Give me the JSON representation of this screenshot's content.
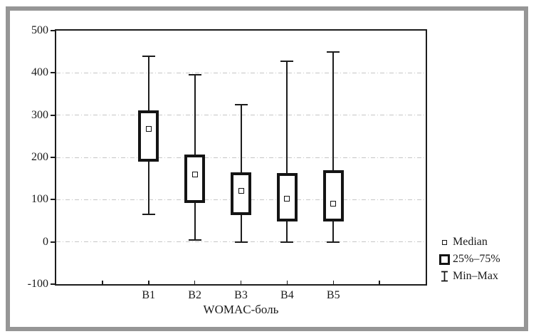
{
  "chart_data": {
    "type": "box",
    "title": "",
    "xlabel": "WOMAC-боль",
    "ylabel": "",
    "ylim": [
      -100,
      500
    ],
    "yticks": [
      500,
      400,
      300,
      200,
      100,
      0,
      -100
    ],
    "yticklabels": [
      "500",
      "400",
      "300",
      "200",
      "100",
      "0",
      "-100"
    ],
    "grid_values": [
      400,
      300,
      200,
      100,
      0
    ],
    "grid": "horizontal dash-dot light gray",
    "x_tick_intervals": 8,
    "categories": [
      "B1",
      "B2",
      "B3",
      "B4",
      "B5"
    ],
    "series": [
      {
        "category": "B1",
        "min": 65,
        "q1": 190,
        "median": 268,
        "q3": 312,
        "max": 440
      },
      {
        "category": "B2",
        "min": 5,
        "q1": 92,
        "median": 160,
        "q3": 206,
        "max": 395
      },
      {
        "category": "B3",
        "min": 0,
        "q1": 63,
        "median": 120,
        "q3": 165,
        "max": 324
      },
      {
        "category": "B4",
        "min": 0,
        "q1": 48,
        "median": 103,
        "q3": 163,
        "max": 428
      },
      {
        "category": "B5",
        "min": 0,
        "q1": 48,
        "median": 91,
        "q3": 170,
        "max": 450
      }
    ],
    "legend_position": "right-bottom",
    "legend": [
      {
        "icon": "median-square-icon",
        "label": "Median"
      },
      {
        "icon": "iqr-box-icon",
        "label": "25%–75%"
      },
      {
        "icon": "min-max-whisker-icon",
        "label": "Min–Max"
      }
    ],
    "colors": {
      "box_stroke": "#141414",
      "box_fill": "#ffffff",
      "gridline": "#c6c6c6",
      "frame": "#1c1c1c",
      "outer_border": "#969696",
      "text": "#1a1a1a"
    }
  }
}
